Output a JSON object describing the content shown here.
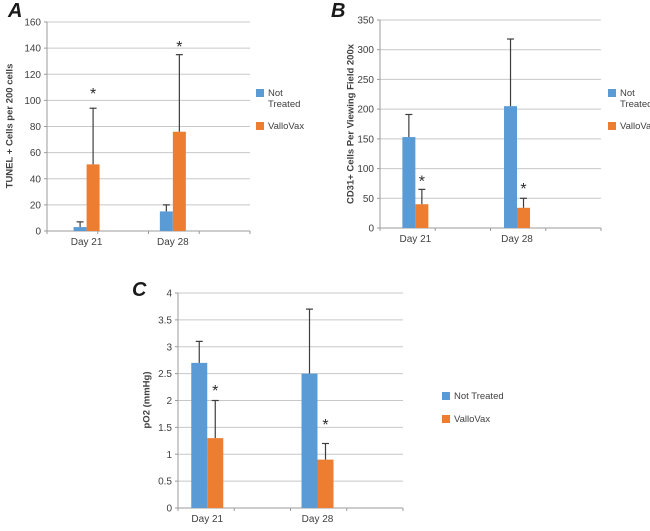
{
  "figure": {
    "background": "#ffffff",
    "description": "Three-panel bar figure comparing Not Treated vs ValloVax at Day 21 and Day 28"
  },
  "style": {
    "bar_blue": "#5B9BD5",
    "bar_orange": "#ED7D31",
    "grid_color": "#C8C8C8",
    "axis_color": "#9B9B9B",
    "text_color": "#404040",
    "error_color": "#3d3d3d",
    "significance_color": "#2b2b2b"
  },
  "chart_data": [
    {
      "panel_label": "A",
      "type": "bar",
      "title": "",
      "xlabel": "",
      "ylabel": "TUNEL + Cells per 200 cells",
      "categories": [
        "Day 21",
        "Day 28"
      ],
      "series": [
        {
          "name": "Not Treated",
          "color": "#5B9BD5",
          "values": [
            3,
            15
          ],
          "error_plus": [
            4,
            5
          ]
        },
        {
          "name": "ValloVax",
          "color": "#ED7D31",
          "values": [
            51,
            76
          ],
          "error_plus": [
            43,
            59
          ]
        }
      ],
      "significance": [
        {
          "category_index": 0,
          "series": "ValloVax",
          "marker": "*",
          "y_value": 108
        },
        {
          "category_index": 1,
          "series": "ValloVax",
          "marker": "*",
          "y_value": 144
        }
      ],
      "ylim": [
        0,
        160
      ],
      "ytick_step": 20,
      "grid": true,
      "legend_position": "right"
    },
    {
      "panel_label": "B",
      "type": "bar",
      "title": "",
      "xlabel": "",
      "ylabel": "CD31+ Cells Per Viewing Field 200x",
      "categories": [
        "Day 21",
        "Day 28"
      ],
      "series": [
        {
          "name": "Not Treated",
          "color": "#5B9BD5",
          "values": [
            153,
            205
          ],
          "error_plus": [
            38,
            113
          ]
        },
        {
          "name": "ValloVax",
          "color": "#ED7D31",
          "values": [
            40,
            34
          ],
          "error_plus": [
            25,
            16
          ]
        }
      ],
      "significance": [
        {
          "category_index": 0,
          "series": "ValloVax",
          "marker": "*",
          "y_value": 85
        },
        {
          "category_index": 1,
          "series": "ValloVax",
          "marker": "*",
          "y_value": 72
        }
      ],
      "ylim": [
        0,
        350
      ],
      "ytick_step": 50,
      "grid": true,
      "legend_position": "right"
    },
    {
      "panel_label": "C",
      "type": "bar",
      "title": "",
      "xlabel": "",
      "ylabel": "pO2 (mmHg)",
      "categories": [
        "Day 21",
        "Day 28"
      ],
      "series": [
        {
          "name": "Not Treated",
          "color": "#5B9BD5",
          "values": [
            2.7,
            2.5
          ],
          "error_plus": [
            0.4,
            1.2
          ]
        },
        {
          "name": "ValloVax",
          "color": "#ED7D31",
          "values": [
            1.3,
            0.9
          ],
          "error_plus": [
            0.7,
            0.3
          ]
        }
      ],
      "significance": [
        {
          "category_index": 0,
          "series": "ValloVax",
          "marker": "*",
          "y_value": 2.25
        },
        {
          "category_index": 1,
          "series": "ValloVax",
          "marker": "*",
          "y_value": 1.62
        }
      ],
      "ylim": [
        0,
        4
      ],
      "ytick_step": 0.5,
      "grid": true,
      "legend_position": "right"
    }
  ]
}
